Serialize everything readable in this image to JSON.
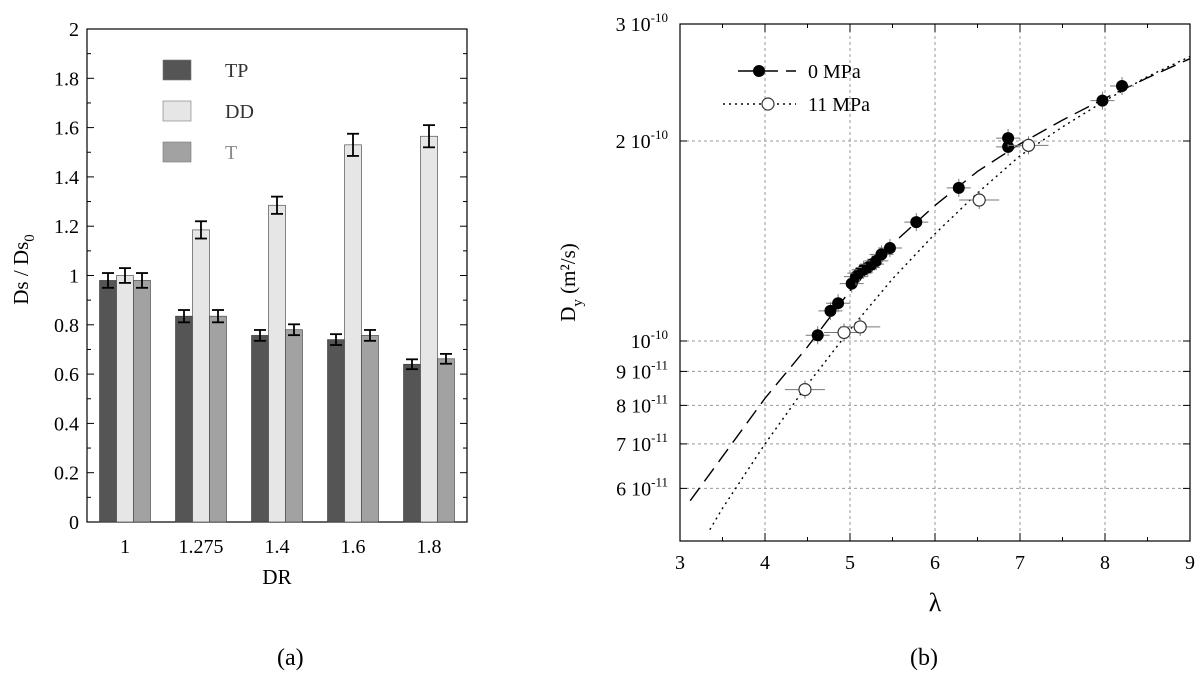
{
  "panel_labels": [
    "(a)",
    "(b)"
  ],
  "chart_data": [
    {
      "type": "bar",
      "xlabel": "DR",
      "ylabel": "Ds / Ds",
      "ylabel_sub": "0",
      "ylim": [
        0,
        2
      ],
      "yticks": [
        "0",
        "0.2",
        "0.4",
        "0.6",
        "0.8",
        "1",
        "1.2",
        "1.4",
        "1.6",
        "1.8",
        "2"
      ],
      "categories": [
        "1",
        "1.275",
        "1.4",
        "1.6",
        "1.8"
      ],
      "legend_position": "top-left",
      "series": [
        {
          "name": "TP",
          "color": "#555555",
          "values": [
            0.98,
            0.835,
            0.757,
            0.74,
            0.64
          ],
          "errors": [
            0.03,
            0.025,
            0.022,
            0.022,
            0.02
          ]
        },
        {
          "name": "DD",
          "color": "#e6e6e6",
          "values": [
            1.0,
            1.185,
            1.285,
            1.53,
            1.565
          ],
          "errors": [
            0.03,
            0.035,
            0.035,
            0.045,
            0.045
          ]
        },
        {
          "name": "T",
          "color": "#a2a2a2",
          "values": [
            0.98,
            0.835,
            0.78,
            0.757,
            0.662
          ],
          "errors": [
            0.03,
            0.025,
            0.022,
            0.022,
            0.02
          ]
        }
      ]
    },
    {
      "type": "scatter",
      "xlabel": "λ",
      "ylabel": "D",
      "ylabel_sub": "y",
      "ylabel_unit": "(m²/s)",
      "xlim": [
        3,
        9
      ],
      "xticks": [
        "3",
        "4",
        "5",
        "6",
        "7",
        "8",
        "9"
      ],
      "y_scale": "log",
      "ylim": [
        5e-11,
        3e-10
      ],
      "yticks": [
        {
          "value": 3e-10,
          "mantissa": "3",
          "exp": "-10"
        },
        {
          "value": 2e-10,
          "mantissa": "2",
          "exp": "-10"
        },
        {
          "value": 1e-10,
          "mantissa": "",
          "exp": "-10"
        },
        {
          "value": 9e-11,
          "mantissa": "9",
          "exp": "-11"
        },
        {
          "value": 8e-11,
          "mantissa": "8",
          "exp": "-11"
        },
        {
          "value": 7e-11,
          "mantissa": "7",
          "exp": "-11"
        },
        {
          "value": 6e-11,
          "mantissa": "6",
          "exp": "-11"
        }
      ],
      "grid": true,
      "legend_position": "top-left",
      "series": [
        {
          "name": "0 MPa",
          "marker": "filled-circle",
          "line": "long-dash",
          "x": [
            4.62,
            4.77,
            4.86,
            5.02,
            5.07,
            5.11,
            5.16,
            5.21,
            5.26,
            5.31,
            5.37,
            5.47,
            5.78,
            6.28,
            6.86,
            6.86,
            7.97,
            8.2
          ],
          "y": [
            1.02e-10,
            1.11e-10,
            1.14e-10,
            1.22e-10,
            1.25e-10,
            1.265e-10,
            1.28e-10,
            1.29e-10,
            1.305e-10,
            1.32e-10,
            1.35e-10,
            1.38e-10,
            1.51e-10,
            1.7e-10,
            1.96e-10,
            2.02e-10,
            2.3e-10,
            2.42e-10
          ],
          "fit_x": [
            3.12,
            3.5,
            4,
            4.5,
            5,
            5.5,
            6,
            6.5,
            7,
            7.5,
            8,
            8.5,
            9
          ],
          "fit_y": [
            5.75e-11,
            6.7e-11,
            8.2e-11,
            9.8e-11,
            1.19e-10,
            1.4e-10,
            1.6e-10,
            1.8e-10,
            1.98e-10,
            2.15e-10,
            2.32e-10,
            2.49e-10,
            2.66e-10
          ]
        },
        {
          "name": "11 MPa",
          "marker": "open-circle",
          "line": "dotted",
          "x": [
            4.47,
            4.93,
            5.12,
            6.52,
            7.1
          ],
          "y": [
            8.45e-11,
            1.03e-10,
            1.05e-10,
            1.63e-10,
            1.97e-10
          ],
          "fit_x": [
            3.35,
            3.5,
            4,
            4.5,
            5,
            5.5,
            6,
            6.5,
            7,
            7.5,
            8,
            8.5,
            9
          ],
          "fit_y": [
            5.2e-11,
            5.6e-11,
            7e-11,
            8.6e-11,
            1.04e-10,
            1.24e-10,
            1.45e-10,
            1.67e-10,
            1.9e-10,
            2.1e-10,
            2.3e-10,
            2.5e-10,
            2.68e-10
          ]
        }
      ]
    }
  ]
}
